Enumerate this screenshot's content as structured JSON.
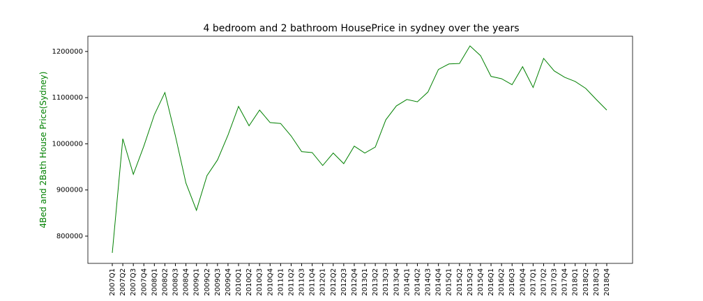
{
  "chart_data": {
    "type": "line",
    "title": "4 bedroom  and 2 bathroom HousePrice in sydney over the years",
    "y_label": "4Bed and 2Bath House Price(Sydney)",
    "label_color": "#008000",
    "categories": [
      "2007Q1",
      "2007Q2",
      "2007Q3",
      "2007Q4",
      "2008Q1",
      "2008Q2",
      "2008Q3",
      "2008Q4",
      "2009Q1",
      "2009Q2",
      "2009Q3",
      "2009Q4",
      "2010Q1",
      "2010Q2",
      "2010Q3",
      "2010Q4",
      "2011Q1",
      "2011Q2",
      "2011Q3",
      "2011Q4",
      "2012Q1",
      "2012Q2",
      "2012Q3",
      "2012Q4",
      "2013Q1",
      "2013Q2",
      "2013Q3",
      "2013Q4",
      "2014Q1",
      "2014Q2",
      "2014Q3",
      "2014Q4",
      "2015Q1",
      "2015Q2",
      "2015Q3",
      "2015Q4",
      "2016Q1",
      "2016Q2",
      "2016Q3",
      "2016Q4",
      "2017Q1",
      "2017Q2",
      "2017Q3",
      "2017Q4",
      "2018Q1",
      "2018Q2",
      "2018Q3",
      "2018Q4"
    ],
    "series": [
      {
        "color": "#008000",
        "values": [
          763800,
          1011000,
          934000,
          995000,
          1063000,
          1111000,
          1017000,
          915000,
          856000,
          931000,
          965000,
          1019000,
          1081000,
          1039000,
          1073000,
          1046000,
          1044000,
          1017000,
          983000,
          981000,
          953000,
          980000,
          957000,
          995000,
          980000,
          993000,
          1052000,
          1082000,
          1096000,
          1091000,
          1112000,
          1161000,
          1173000,
          1174000,
          1212000,
          1191000,
          1146000,
          1141000,
          1128000,
          1167000,
          1122000,
          1185000,
          1158000,
          1144000,
          1135000,
          1120000,
          1096000,
          1073000
        ]
      }
    ],
    "ylim": [
      741000,
      1233000
    ],
    "yticks": [
      800000,
      900000,
      1000000,
      1100000,
      1200000
    ]
  }
}
